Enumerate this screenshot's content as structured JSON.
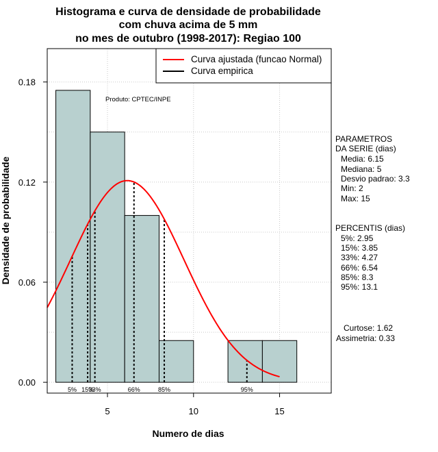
{
  "title_lines": [
    "Histograma e curva de densidade de probabilidade",
    "com chuva acima de 5 mm",
    "no mes de outubro (1998-2017): Regiao 100"
  ],
  "produto": "Produto: CPTEC/INPE",
  "legend": {
    "fit_label": "Curva ajustada (funcao Normal)",
    "empirical_label": "Curva empirica",
    "fit_color": "#ff0000",
    "empirical_color": "#000000"
  },
  "parametros": {
    "header": [
      "PARAMETROS",
      "DA SERIE (dias)"
    ],
    "lines": [
      "Media: 6.15",
      "Mediana: 5",
      "Desvio padrao: 3.3",
      "Min: 2",
      "Max: 15"
    ]
  },
  "percentis": {
    "header": "PERCENTIS (dias)",
    "lines": [
      "5%: 2.95",
      "15%: 3.85",
      "33%: 4.27",
      "66%: 6.54",
      "85%: 8.3",
      "95%: 13.1"
    ]
  },
  "shape": {
    "lines": [
      "Curtose: 1.62",
      "Assimetria: 0.33"
    ]
  },
  "chart_data": {
    "type": "bar",
    "xlabel": "Numero de dias",
    "ylabel": "Densidade de probabilidade",
    "xlim": [
      1.5,
      18
    ],
    "ylim": [
      -0.0065,
      0.2
    ],
    "xticks": [
      5,
      10,
      15
    ],
    "yticks": [
      0.0,
      0.06,
      0.12,
      0.18
    ],
    "ytick_labels": [
      "0.00",
      "0.06",
      "0.12",
      "0.18"
    ],
    "grid": true,
    "bar_color": "#b8d0cf",
    "bins": [
      {
        "start": 2,
        "end": 4,
        "density": 0.175
      },
      {
        "start": 4,
        "end": 6,
        "density": 0.15
      },
      {
        "start": 6,
        "end": 8,
        "density": 0.1
      },
      {
        "start": 8,
        "end": 10,
        "density": 0.025
      },
      {
        "start": 10,
        "end": 12,
        "density": 0.0
      },
      {
        "start": 12,
        "end": 14,
        "density": 0.025
      },
      {
        "start": 14,
        "end": 16,
        "density": 0.025
      }
    ],
    "normal_fit": {
      "mean": 6.15,
      "sd": 3.3,
      "x_range": [
        1.5,
        15
      ]
    },
    "percentiles": [
      {
        "label": "5%",
        "value": 2.95
      },
      {
        "label": "15%",
        "value": 3.85
      },
      {
        "label": "33%",
        "value": 4.27
      },
      {
        "label": "66%",
        "value": 6.54
      },
      {
        "label": "85%",
        "value": 8.3
      },
      {
        "label": "95%",
        "value": 13.1
      }
    ]
  }
}
